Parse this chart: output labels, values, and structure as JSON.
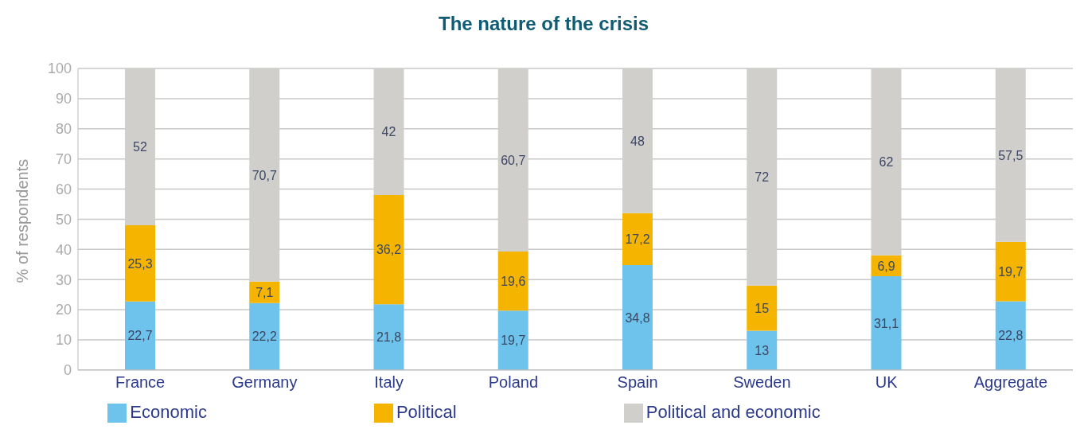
{
  "chart_data": {
    "type": "bar",
    "title": "The nature of the crisis",
    "ylabel": "% of respondents",
    "categories": [
      "France",
      "Germany",
      "Italy",
      "Poland",
      "Spain",
      "Sweden",
      "UK",
      "Aggregate"
    ],
    "stacked": true,
    "ylim": [
      0,
      100
    ],
    "yticks": [
      0,
      10,
      20,
      30,
      40,
      50,
      60,
      70,
      80,
      90,
      100
    ],
    "grid": "y",
    "legend": "bottom",
    "series": [
      {
        "name": "Economic",
        "color": "#6ec3ec",
        "values": [
          22.7,
          22.2,
          21.8,
          19.7,
          34.8,
          13,
          31.1,
          22.8
        ],
        "value_labels": [
          "22,7",
          "22,2",
          "21,8",
          "19,7",
          "34,8",
          "13",
          "31,1",
          "22,8"
        ]
      },
      {
        "name": "Political",
        "color": "#f4b400",
        "values": [
          25.3,
          7.1,
          36.2,
          19.6,
          17.2,
          15,
          6.9,
          19.7
        ],
        "value_labels": [
          "25,3",
          "7,1",
          "36,2",
          "19,6",
          "17,2",
          "15",
          "6,9",
          "19,7"
        ]
      },
      {
        "name": "Political and economic",
        "color": "#d0cfcc",
        "values": [
          52,
          70.7,
          42,
          60.7,
          48,
          72,
          62,
          57.5
        ],
        "value_labels": [
          "52",
          "70,7",
          "42",
          "60,7",
          "48",
          "72",
          "62",
          "57,5"
        ]
      }
    ]
  }
}
